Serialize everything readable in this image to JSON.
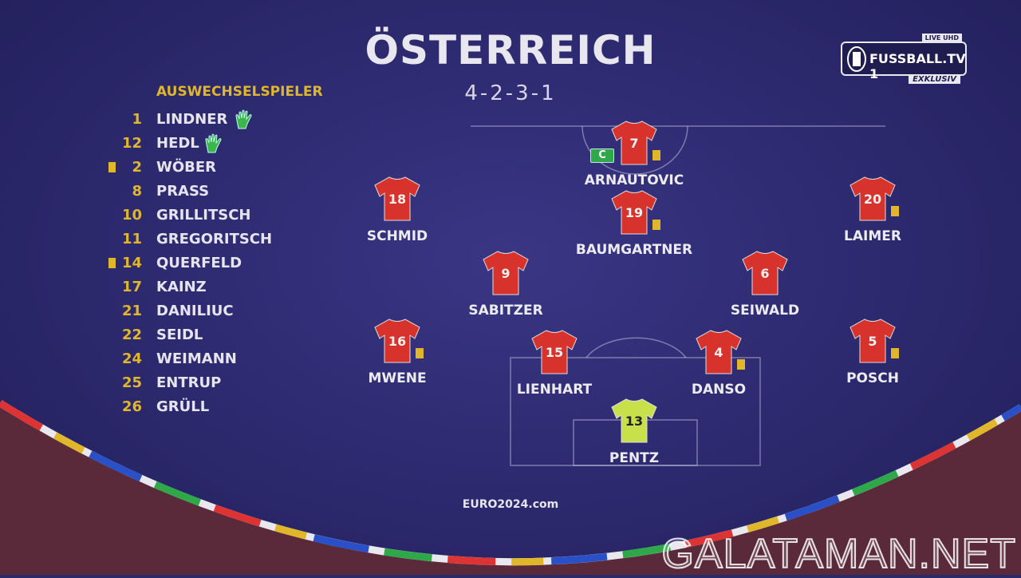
{
  "header": {
    "team": "ÖSTERREICH",
    "formation": "4-2-3-1"
  },
  "broadcaster": {
    "name": "FUSSBALL.TV 1",
    "badge_top": "LIVE UHD",
    "badge_bottom": "EXKLUSIV"
  },
  "substitutes": {
    "title": "AUSWECHSELSPIELER",
    "players": [
      {
        "number": "1",
        "name": "LINDNER",
        "goalkeeper": true,
        "yellow_card": false
      },
      {
        "number": "12",
        "name": "HEDL",
        "goalkeeper": true,
        "yellow_card": false
      },
      {
        "number": "2",
        "name": "WÖBER",
        "goalkeeper": false,
        "yellow_card": true
      },
      {
        "number": "8",
        "name": "PRASS",
        "goalkeeper": false,
        "yellow_card": false
      },
      {
        "number": "10",
        "name": "GRILLITSCH",
        "goalkeeper": false,
        "yellow_card": false
      },
      {
        "number": "11",
        "name": "GREGORITSCH",
        "goalkeeper": false,
        "yellow_card": false
      },
      {
        "number": "14",
        "name": "QUERFELD",
        "goalkeeper": false,
        "yellow_card": true
      },
      {
        "number": "17",
        "name": "KAINZ",
        "goalkeeper": false,
        "yellow_card": false
      },
      {
        "number": "21",
        "name": "DANILIUC",
        "goalkeeper": false,
        "yellow_card": false
      },
      {
        "number": "22",
        "name": "SEIDL",
        "goalkeeper": false,
        "yellow_card": false
      },
      {
        "number": "24",
        "name": "WEIMANN",
        "goalkeeper": false,
        "yellow_card": false
      },
      {
        "number": "25",
        "name": "ENTRUP",
        "goalkeeper": false,
        "yellow_card": false
      },
      {
        "number": "26",
        "name": "GRÜLL",
        "goalkeeper": false,
        "yellow_card": false
      }
    ]
  },
  "lineup": [
    {
      "number": "7",
      "name": "ARNAUTOVIC",
      "captain": true,
      "captain_label": "C",
      "yellow_card": true,
      "goalkeeper": false
    },
    {
      "number": "18",
      "name": "SCHMID",
      "captain": false,
      "yellow_card": false,
      "goalkeeper": false
    },
    {
      "number": "19",
      "name": "BAUMGARTNER",
      "captain": false,
      "yellow_card": true,
      "goalkeeper": false
    },
    {
      "number": "20",
      "name": "LAIMER",
      "captain": false,
      "yellow_card": true,
      "goalkeeper": false
    },
    {
      "number": "9",
      "name": "SABITZER",
      "captain": false,
      "yellow_card": false,
      "goalkeeper": false
    },
    {
      "number": "6",
      "name": "SEIWALD",
      "captain": false,
      "yellow_card": false,
      "goalkeeper": false
    },
    {
      "number": "16",
      "name": "MWENE",
      "captain": false,
      "yellow_card": true,
      "goalkeeper": false
    },
    {
      "number": "15",
      "name": "LIENHART",
      "captain": false,
      "yellow_card": false,
      "goalkeeper": false
    },
    {
      "number": "4",
      "name": "DANSO",
      "captain": false,
      "yellow_card": true,
      "goalkeeper": false
    },
    {
      "number": "5",
      "name": "POSCH",
      "captain": false,
      "yellow_card": true,
      "goalkeeper": false
    },
    {
      "number": "13",
      "name": "PENTZ",
      "captain": false,
      "yellow_card": false,
      "goalkeeper": true
    }
  ],
  "colors": {
    "jersey": "#d8322c",
    "gk_jersey": "#c8e04a",
    "accent": "#e0b62a",
    "glove": "#3cb54a",
    "background": "#2e2b72"
  },
  "footer": {
    "site": "EURO2024.com"
  },
  "watermark": "GALATAMAN.NET"
}
